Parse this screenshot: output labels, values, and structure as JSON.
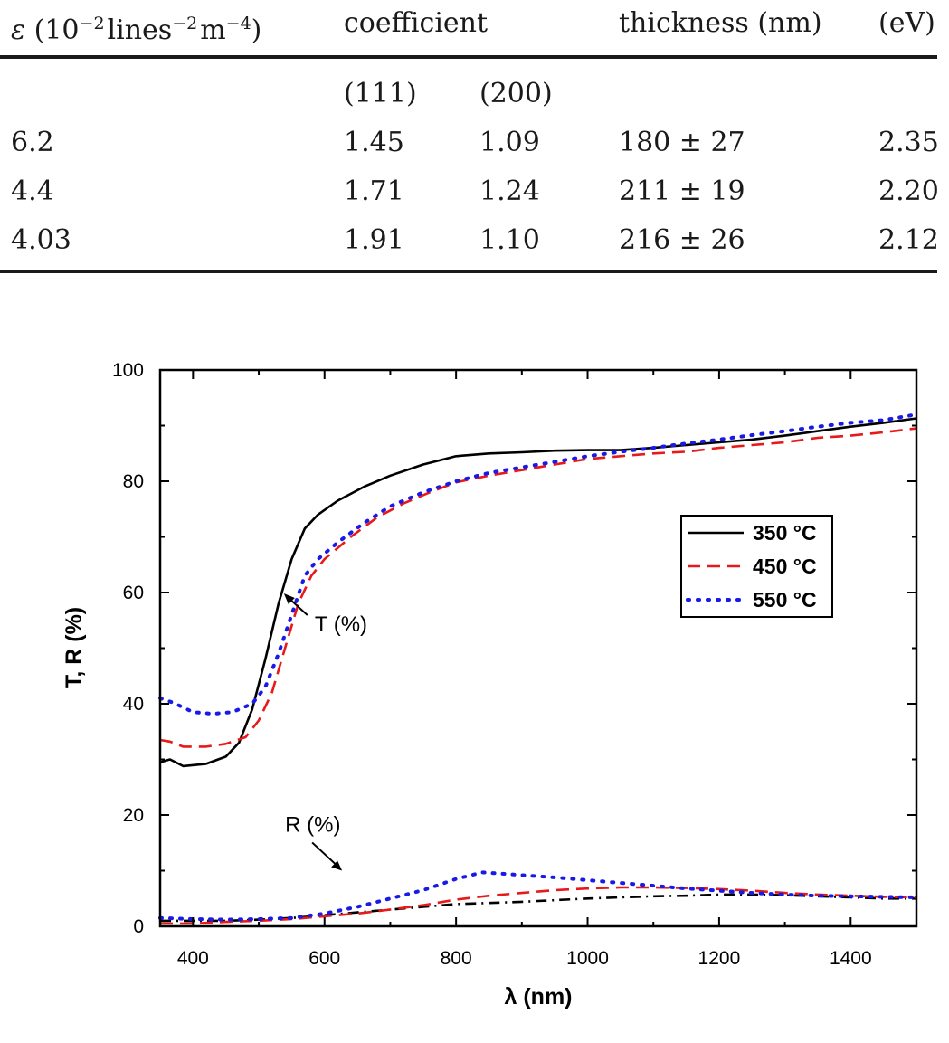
{
  "table": {
    "headers": [
      {
        "key": "eps",
        "label": "ε (10−2 lines−2 m−4)"
      },
      {
        "key": "coef",
        "label": "coefficient"
      },
      {
        "key": "thick",
        "label": "thickness (nm)"
      },
      {
        "key": "eg",
        "label": "(eV)"
      }
    ],
    "subheaders": [
      "(111)",
      "(200)"
    ],
    "rows": [
      [
        "6.2",
        "1.45",
        "1.09",
        "180 ± 27",
        "2.35"
      ],
      [
        "4.4",
        "1.71",
        "1.24",
        "211 ± 19",
        "2.20"
      ],
      [
        "4.03",
        "1.91",
        "1.10",
        "216 ± 26",
        "2.12"
      ]
    ]
  },
  "chart_data": {
    "type": "line",
    "xlabel": "λ (nm)",
    "ylabel": "T, R (%)",
    "xlim": [
      350,
      1500
    ],
    "ylim": [
      0,
      100
    ],
    "xticks": [
      400,
      600,
      800,
      1000,
      1200,
      1400
    ],
    "yticks": [
      0,
      20,
      40,
      60,
      80,
      100
    ],
    "grid": false,
    "legend_position": "top-right",
    "annotations": [
      {
        "text": "T (%)",
        "x": 585,
        "y": 53
      },
      {
        "text": "R (%)",
        "x": 540,
        "y": 17
      }
    ],
    "series": [
      {
        "name": "350 °C",
        "color": "#000000",
        "style": "solid",
        "group": "T",
        "points": [
          [
            350,
            29.5
          ],
          [
            365,
            30
          ],
          [
            385,
            28.8
          ],
          [
            420,
            29.2
          ],
          [
            450,
            30.5
          ],
          [
            470,
            33
          ],
          [
            490,
            39
          ],
          [
            510,
            48
          ],
          [
            530,
            58
          ],
          [
            550,
            66
          ],
          [
            570,
            71.5
          ],
          [
            590,
            74
          ],
          [
            620,
            76.5
          ],
          [
            660,
            79
          ],
          [
            700,
            81
          ],
          [
            750,
            83
          ],
          [
            800,
            84.5
          ],
          [
            850,
            85
          ],
          [
            900,
            85.2
          ],
          [
            950,
            85.5
          ],
          [
            1000,
            85.6
          ],
          [
            1050,
            85.6
          ],
          [
            1100,
            86
          ],
          [
            1150,
            86.5
          ],
          [
            1200,
            87
          ],
          [
            1250,
            87.5
          ],
          [
            1300,
            88.2
          ],
          [
            1350,
            89
          ],
          [
            1400,
            89.8
          ],
          [
            1450,
            90.5
          ],
          [
            1500,
            91.3
          ]
        ]
      },
      {
        "name": "450 °C",
        "color": "#e8191a",
        "style": "dashed",
        "group": "T",
        "points": [
          [
            350,
            33.5
          ],
          [
            365,
            33.2
          ],
          [
            385,
            32.3
          ],
          [
            420,
            32.3
          ],
          [
            450,
            32.8
          ],
          [
            480,
            34
          ],
          [
            500,
            37
          ],
          [
            520,
            42
          ],
          [
            540,
            50
          ],
          [
            560,
            58
          ],
          [
            580,
            63
          ],
          [
            600,
            66
          ],
          [
            640,
            70
          ],
          [
            680,
            73.5
          ],
          [
            720,
            76
          ],
          [
            760,
            78
          ],
          [
            800,
            79.8
          ],
          [
            850,
            81
          ],
          [
            900,
            82
          ],
          [
            950,
            83
          ],
          [
            1000,
            84
          ],
          [
            1050,
            84.5
          ],
          [
            1100,
            85
          ],
          [
            1150,
            85.3
          ],
          [
            1200,
            86
          ],
          [
            1250,
            86.5
          ],
          [
            1300,
            87
          ],
          [
            1350,
            87.8
          ],
          [
            1400,
            88.2
          ],
          [
            1450,
            88.8
          ],
          [
            1500,
            89.5
          ]
        ]
      },
      {
        "name": "550 °C",
        "color": "#1a1ae6",
        "style": "dotted",
        "group": "T",
        "points": [
          [
            350,
            41
          ],
          [
            370,
            40.2
          ],
          [
            400,
            38.5
          ],
          [
            430,
            38.2
          ],
          [
            460,
            38.5
          ],
          [
            490,
            40
          ],
          [
            510,
            43
          ],
          [
            530,
            49
          ],
          [
            550,
            56
          ],
          [
            570,
            63
          ],
          [
            590,
            66
          ],
          [
            620,
            69
          ],
          [
            660,
            72.5
          ],
          [
            700,
            75.5
          ],
          [
            750,
            78
          ],
          [
            800,
            80
          ],
          [
            850,
            81.5
          ],
          [
            900,
            82.5
          ],
          [
            950,
            83.5
          ],
          [
            1000,
            84.5
          ],
          [
            1050,
            85.3
          ],
          [
            1100,
            86
          ],
          [
            1150,
            86.8
          ],
          [
            1200,
            87.5
          ],
          [
            1250,
            88.3
          ],
          [
            1300,
            89
          ],
          [
            1350,
            89.8
          ],
          [
            1400,
            90.5
          ],
          [
            1450,
            91
          ],
          [
            1500,
            92
          ]
        ]
      },
      {
        "name": "350 °C",
        "color": "#000000",
        "style": "dashdot",
        "group": "R",
        "points": [
          [
            350,
            1
          ],
          [
            400,
            1
          ],
          [
            450,
            1
          ],
          [
            500,
            1.2
          ],
          [
            550,
            1.5
          ],
          [
            600,
            2
          ],
          [
            650,
            2.5
          ],
          [
            700,
            3
          ],
          [
            750,
            3.5
          ],
          [
            800,
            4
          ],
          [
            850,
            4.2
          ],
          [
            900,
            4.4
          ],
          [
            950,
            4.7
          ],
          [
            1000,
            5
          ],
          [
            1050,
            5.2
          ],
          [
            1100,
            5.4
          ],
          [
            1150,
            5.5
          ],
          [
            1200,
            5.7
          ],
          [
            1250,
            5.7
          ],
          [
            1300,
            5.6
          ],
          [
            1350,
            5.4
          ],
          [
            1400,
            5.2
          ],
          [
            1450,
            5
          ],
          [
            1500,
            5
          ]
        ]
      },
      {
        "name": "450 °C",
        "color": "#e8191a",
        "style": "dashed",
        "group": "R",
        "points": [
          [
            350,
            0.5
          ],
          [
            400,
            0.5
          ],
          [
            450,
            0.8
          ],
          [
            500,
            1
          ],
          [
            550,
            1.3
          ],
          [
            600,
            1.8
          ],
          [
            650,
            2.3
          ],
          [
            700,
            3
          ],
          [
            750,
            3.8
          ],
          [
            800,
            4.8
          ],
          [
            850,
            5.5
          ],
          [
            900,
            6
          ],
          [
            950,
            6.5
          ],
          [
            1000,
            6.8
          ],
          [
            1050,
            7
          ],
          [
            1100,
            7
          ],
          [
            1150,
            6.9
          ],
          [
            1200,
            6.7
          ],
          [
            1250,
            6.4
          ],
          [
            1300,
            6
          ],
          [
            1350,
            5.7
          ],
          [
            1400,
            5.5
          ],
          [
            1450,
            5.3
          ],
          [
            1500,
            5.2
          ]
        ]
      },
      {
        "name": "550 °C",
        "color": "#1a1ae6",
        "style": "dotted",
        "group": "R",
        "points": [
          [
            350,
            1.5
          ],
          [
            400,
            1.3
          ],
          [
            450,
            1.2
          ],
          [
            500,
            1.3
          ],
          [
            550,
            1.5
          ],
          [
            600,
            2.3
          ],
          [
            650,
            3.5
          ],
          [
            700,
            5
          ],
          [
            750,
            6.5
          ],
          [
            800,
            8.5
          ],
          [
            840,
            9.7
          ],
          [
            900,
            9.2
          ],
          [
            950,
            8.8
          ],
          [
            1000,
            8.3
          ],
          [
            1050,
            7.8
          ],
          [
            1100,
            7.3
          ],
          [
            1150,
            6.8
          ],
          [
            1200,
            6.4
          ],
          [
            1250,
            6
          ],
          [
            1300,
            5.7
          ],
          [
            1350,
            5.5
          ],
          [
            1400,
            5.4
          ],
          [
            1450,
            5.3
          ],
          [
            1500,
            5.2
          ]
        ]
      }
    ]
  }
}
